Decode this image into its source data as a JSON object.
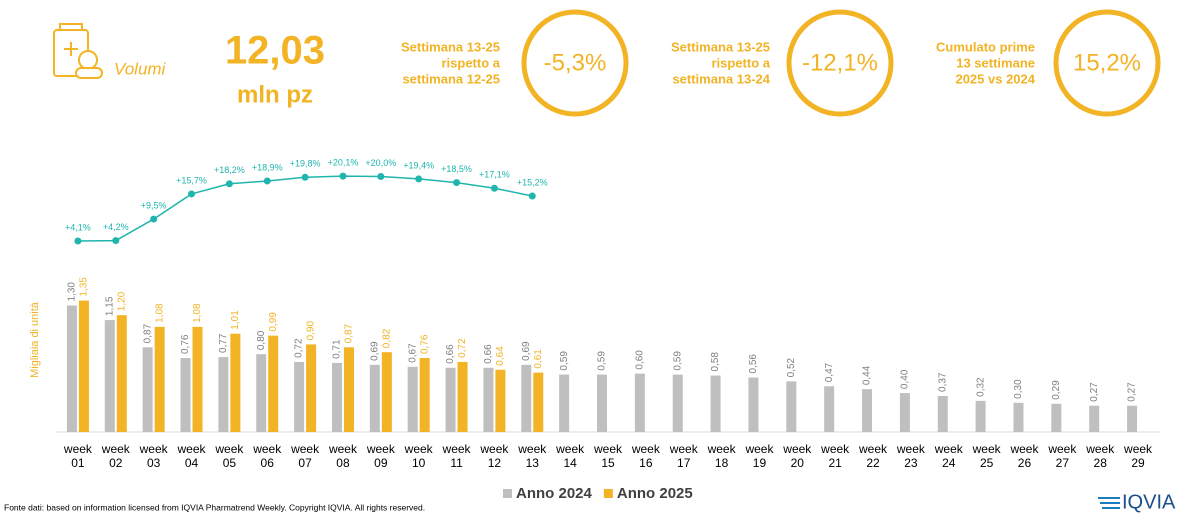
{
  "header": {
    "label": "Volumi",
    "value": "12,03",
    "unit": "mln pz",
    "kpis": [
      {
        "lines": [
          "Settimana 13-25",
          "rispetto a",
          "settimana 12-25"
        ],
        "value": "-5,3%"
      },
      {
        "lines": [
          "Settimana 13-25",
          "rispetto a",
          "settimana 13-24"
        ],
        "value": "-12,1%"
      },
      {
        "lines": [
          "Cumulato prime",
          "13 settimane",
          "2025 vs 2024"
        ],
        "value": "15,2%"
      }
    ]
  },
  "chart_data": {
    "type": "bar",
    "y_label": "Migliaia di unità",
    "categories": [
      "week 01",
      "week 02",
      "week 03",
      "week 04",
      "week 05",
      "week 06",
      "week 07",
      "week 08",
      "week 09",
      "week 10",
      "week 11",
      "week 12",
      "week 13",
      "week 14",
      "week 15",
      "week 16",
      "week 17",
      "week 18",
      "week 19",
      "week 20",
      "week 21",
      "week 22",
      "week 23",
      "week 24",
      "week 25",
      "week 26",
      "week 27",
      "week 28",
      "week 29"
    ],
    "ylim": [
      0,
      3
    ],
    "y2lim": [
      -43,
      29
    ],
    "legend": "bottom",
    "series": [
      {
        "name": "Anno 2024",
        "color": "#bfbfbf",
        "values": [
          1.3,
          1.15,
          0.87,
          0.76,
          0.77,
          0.8,
          0.72,
          0.71,
          0.69,
          0.67,
          0.66,
          0.66,
          0.69,
          0.59,
          0.59,
          0.6,
          0.59,
          0.58,
          0.56,
          0.52,
          0.47,
          0.44,
          0.4,
          0.37,
          0.32,
          0.3,
          0.29,
          0.27,
          0.27
        ],
        "value_labels": [
          "1,30",
          "1,15",
          "0,87",
          "0,76",
          "0,77",
          "0,80",
          "0,72",
          "0,71",
          "0,69",
          "0,67",
          "0,66",
          "0,66",
          "0,69",
          "0,59",
          "0,59",
          "0,60",
          "0,59",
          "0,58",
          "0,56",
          "0,52",
          "0,47",
          "0,44",
          "0,40",
          "0,37",
          "0,32",
          "0,30",
          "0,29",
          "0,27",
          "0,27"
        ]
      },
      {
        "name": "Anno 2025",
        "color": "#f2b324",
        "values": [
          1.35,
          1.2,
          1.08,
          1.08,
          1.01,
          0.99,
          0.9,
          0.87,
          0.82,
          0.76,
          0.72,
          0.64,
          0.61,
          null,
          null,
          null,
          null,
          null,
          null,
          null,
          null,
          null,
          null,
          null,
          null,
          null,
          null,
          null,
          null
        ],
        "value_labels": [
          "1,35",
          "1,20",
          "1,08",
          "1,08",
          "1,01",
          "0,99",
          "0,90",
          "0,87",
          "0,82",
          "0,76",
          "0,72",
          "0,64",
          "0,61",
          null,
          null,
          null,
          null,
          null,
          null,
          null,
          null,
          null,
          null,
          null,
          null,
          null,
          null,
          null,
          null
        ]
      },
      {
        "type": "line",
        "axis": "y2",
        "color": "#1fb5ad",
        "values": [
          4.1,
          4.2,
          9.5,
          15.7,
          18.2,
          18.9,
          19.8,
          20.1,
          20.0,
          19.4,
          18.5,
          17.1,
          15.2,
          null,
          null,
          null,
          null,
          null,
          null,
          null,
          null,
          null,
          null,
          null,
          null,
          null,
          null,
          null,
          null
        ],
        "value_labels": [
          "+4,1%",
          "+4,2%",
          "+9,5%",
          "+15,7%",
          "+18,2%",
          "+18,9%",
          "+19,8%",
          "+20,1%",
          "+20,0%",
          "+19,4%",
          "+18,5%",
          "+17,1%",
          "+15,2%",
          null,
          null,
          null,
          null,
          null,
          null,
          null,
          null,
          null,
          null,
          null,
          null,
          null,
          null,
          null,
          null
        ]
      }
    ]
  },
  "footer": {
    "source": "Fonte dati: based on information licensed from IQVIA Pharmatrend Weekly. Copyright IQVIA. All rights reserved.",
    "logo": "IQVIA"
  }
}
